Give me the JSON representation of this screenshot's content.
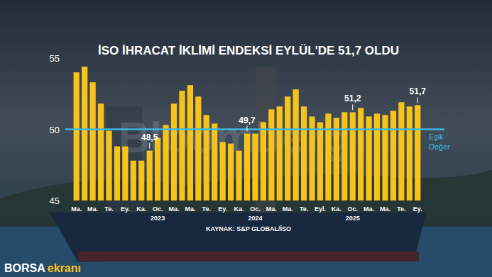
{
  "chart_data": {
    "type": "bar",
    "title": "İSO İHRACAT İKLİMİ ENDEKSİ EYLÜL'DE 51,7 OLDU",
    "source": "KAYNAK: S&P GLOBAL/İSO",
    "brand": [
      "BORSA",
      "ekranı"
    ],
    "watermark": "Bloomberg",
    "categories": [
      "Ma.",
      null,
      "Ma.",
      null,
      "Te.",
      null,
      "Ey.",
      null,
      "Ka.",
      null,
      "Oc.\n2023",
      null,
      "Ma.",
      null,
      "Ma.",
      null,
      "Te.",
      null,
      "Ey.",
      null,
      "Ka.",
      null,
      "Oc.\n2024",
      null,
      "Ma.",
      null,
      "Ma.",
      null,
      "Te.",
      null,
      "Eyl.",
      null,
      "Ka.",
      null,
      "Oc.\n2025",
      null,
      "Ma.",
      null,
      "Ma.",
      null,
      "Te.",
      null,
      "Ey."
    ],
    "values": [
      54.0,
      54.4,
      53.3,
      51.8,
      49.9,
      48.8,
      48.8,
      47.8,
      47.8,
      48.5,
      49.4,
      50.3,
      51.8,
      52.7,
      53.1,
      52.3,
      51.0,
      50.4,
      49.1,
      49.0,
      48.5,
      49.7,
      49.7,
      50.5,
      51.4,
      51.6,
      52.3,
      52.8,
      51.6,
      50.9,
      50.5,
      51.1,
      50.8,
      51.2,
      51.2,
      51.5,
      50.9,
      51.1,
      51.0,
      51.3,
      51.9,
      51.6,
      51.7
    ],
    "value_labels": [
      null,
      null,
      null,
      null,
      null,
      null,
      null,
      null,
      null,
      "48,5",
      null,
      null,
      null,
      null,
      null,
      null,
      null,
      null,
      null,
      null,
      null,
      "49,7",
      null,
      null,
      null,
      null,
      null,
      null,
      null,
      null,
      null,
      null,
      null,
      null,
      "51,2",
      null,
      null,
      null,
      null,
      null,
      null,
      null,
      "51,7"
    ],
    "data_labels": true,
    "color": "#f7c31b",
    "ylim": [
      45,
      55
    ],
    "yticks": [
      45,
      50,
      55
    ],
    "grid": false,
    "annotations": [
      {
        "text": "Eşik\nDeğer",
        "value": 50,
        "color": "#3fb6e6"
      }
    ]
  }
}
